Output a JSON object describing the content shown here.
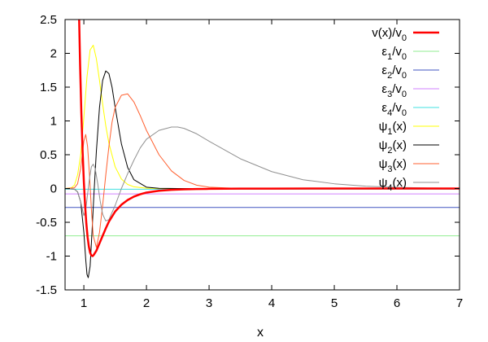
{
  "chart_data": {
    "type": "line",
    "title": "",
    "xlabel": "x",
    "ylabel": "",
    "xlim": [
      0.7,
      7
    ],
    "ylim": [
      -1.5,
      2.5
    ],
    "x_ticks": [
      "1",
      "2",
      "3",
      "4",
      "5",
      "6",
      "7"
    ],
    "y_ticks": [
      "-1.5",
      "-1",
      "-0.5",
      "0",
      "0.5",
      "1",
      "1.5",
      "2",
      "2.5"
    ],
    "grid": false,
    "legend_position": "top-right",
    "series": [
      {
        "name": "v(x)/v0",
        "legend_main": "v(x)/v",
        "legend_sub": "0",
        "color": "#ff0000",
        "width": 2.5,
        "x": [
          0.92,
          0.94,
          0.96,
          0.98,
          1.0,
          1.02,
          1.04,
          1.06,
          1.08,
          1.1,
          1.12,
          1.14,
          1.16,
          1.2,
          1.25,
          1.3,
          1.35,
          1.4,
          1.5,
          1.6,
          1.7,
          1.8,
          1.9,
          2.0,
          2.2,
          2.4,
          2.6,
          2.8,
          3.0,
          3.5,
          4.0,
          5.0,
          6.0,
          7.0
        ],
        "y": [
          2.72,
          1.83,
          1.12,
          0.55,
          0.1,
          -0.25,
          -0.52,
          -0.72,
          -0.86,
          -0.95,
          -0.99,
          -1.0,
          -0.98,
          -0.92,
          -0.81,
          -0.7,
          -0.59,
          -0.49,
          -0.34,
          -0.24,
          -0.17,
          -0.12,
          -0.085,
          -0.06,
          -0.033,
          -0.02,
          -0.012,
          -0.008,
          -0.005,
          -0.002,
          -0.001,
          0.0,
          0.0,
          0.0
        ]
      },
      {
        "name": "ε1/v0",
        "legend_main": "ε",
        "legend_sub": "1",
        "legend_tail": "/v",
        "legend_sub2": "0",
        "color": "#90ee90",
        "width": 1,
        "x": [
          0.7,
          7.0
        ],
        "y": [
          -0.7,
          -0.7
        ]
      },
      {
        "name": "ε2/v0",
        "legend_main": "ε",
        "legend_sub": "2",
        "legend_tail": "/v",
        "legend_sub2": "0",
        "color": "#4055c0",
        "width": 1,
        "x": [
          0.7,
          7.0
        ],
        "y": [
          -0.28,
          -0.28
        ]
      },
      {
        "name": "ε3/v0",
        "legend_main": "ε",
        "legend_sub": "3",
        "legend_tail": "/v",
        "legend_sub2": "0",
        "color": "#d080ff",
        "width": 1,
        "x": [
          0.7,
          7.0
        ],
        "y": [
          -0.08,
          -0.08
        ]
      },
      {
        "name": "ε4/v0",
        "legend_main": "ε",
        "legend_sub": "4",
        "legend_tail": "/v",
        "legend_sub2": "0",
        "color": "#40e0e0",
        "width": 1,
        "x": [
          0.7,
          7.0
        ],
        "y": [
          -0.01,
          -0.01
        ]
      },
      {
        "name": "ψ1(x)",
        "legend_main": "ψ",
        "legend_sub": "1",
        "legend_tail": "(x)",
        "color": "#ffff00",
        "width": 1,
        "x": [
          0.7,
          0.8,
          0.85,
          0.9,
          0.95,
          1.0,
          1.05,
          1.1,
          1.15,
          1.2,
          1.25,
          1.3,
          1.35,
          1.4,
          1.5,
          1.6,
          1.7,
          1.8,
          2.0,
          2.2,
          2.5,
          3.0
        ],
        "y": [
          0.0,
          0.01,
          0.05,
          0.2,
          0.5,
          1.05,
          1.65,
          2.05,
          2.12,
          1.92,
          1.6,
          1.25,
          0.93,
          0.67,
          0.32,
          0.14,
          0.06,
          0.025,
          0.004,
          0.0,
          0.0,
          0.0
        ]
      },
      {
        "name": "ψ2(x)",
        "legend_main": "ψ",
        "legend_sub": "2",
        "legend_tail": "(x)",
        "color": "#000000",
        "width": 1,
        "x": [
          0.7,
          0.85,
          0.9,
          0.95,
          1.0,
          1.03,
          1.05,
          1.07,
          1.1,
          1.13,
          1.16,
          1.2,
          1.25,
          1.3,
          1.35,
          1.4,
          1.45,
          1.5,
          1.6,
          1.7,
          1.8,
          2.0,
          2.2,
          2.5,
          3.0
        ],
        "y": [
          0.0,
          -0.01,
          -0.05,
          -0.2,
          -0.65,
          -1.05,
          -1.27,
          -1.32,
          -1.15,
          -0.65,
          -0.1,
          0.55,
          1.2,
          1.6,
          1.74,
          1.7,
          1.5,
          1.2,
          0.66,
          0.31,
          0.13,
          0.02,
          0.003,
          0.0,
          0.0
        ]
      },
      {
        "name": "ψ3(x)",
        "legend_main": "ψ",
        "legend_sub": "3",
        "legend_tail": "(x)",
        "color": "#ff6030",
        "width": 1,
        "x": [
          0.7,
          0.85,
          0.9,
          0.95,
          1.0,
          1.03,
          1.06,
          1.09,
          1.12,
          1.15,
          1.2,
          1.25,
          1.3,
          1.35,
          1.4,
          1.45,
          1.5,
          1.6,
          1.7,
          1.8,
          1.9,
          2.0,
          2.2,
          2.4,
          2.6,
          2.8,
          3.0,
          3.5
        ],
        "y": [
          0.0,
          0.01,
          0.07,
          0.3,
          0.7,
          0.8,
          0.62,
          0.2,
          -0.3,
          -0.7,
          -0.87,
          -0.65,
          -0.25,
          0.2,
          0.62,
          0.98,
          1.2,
          1.38,
          1.4,
          1.28,
          1.08,
          0.86,
          0.5,
          0.26,
          0.12,
          0.05,
          0.02,
          0.0
        ]
      },
      {
        "name": "ψ4(x)",
        "legend_main": "ψ",
        "legend_sub": "4",
        "legend_tail": "(x)",
        "color": "#909090",
        "width": 1,
        "x": [
          0.7,
          0.85,
          0.9,
          0.95,
          1.0,
          1.03,
          1.06,
          1.09,
          1.12,
          1.15,
          1.18,
          1.22,
          1.26,
          1.3,
          1.35,
          1.4,
          1.5,
          1.6,
          1.7,
          1.8,
          1.9,
          2.0,
          2.2,
          2.4,
          2.5,
          2.6,
          2.8,
          3.0,
          3.5,
          4.0,
          4.5,
          5.0,
          5.5,
          6.0,
          6.5,
          7.0
        ],
        "y": [
          0.0,
          -0.01,
          -0.05,
          -0.2,
          -0.4,
          -0.32,
          -0.08,
          0.15,
          0.32,
          0.36,
          0.3,
          0.08,
          -0.18,
          -0.38,
          -0.48,
          -0.46,
          -0.25,
          0.0,
          0.22,
          0.42,
          0.6,
          0.73,
          0.86,
          0.91,
          0.91,
          0.89,
          0.81,
          0.7,
          0.44,
          0.25,
          0.13,
          0.07,
          0.035,
          0.017,
          0.008,
          0.004
        ]
      }
    ]
  }
}
